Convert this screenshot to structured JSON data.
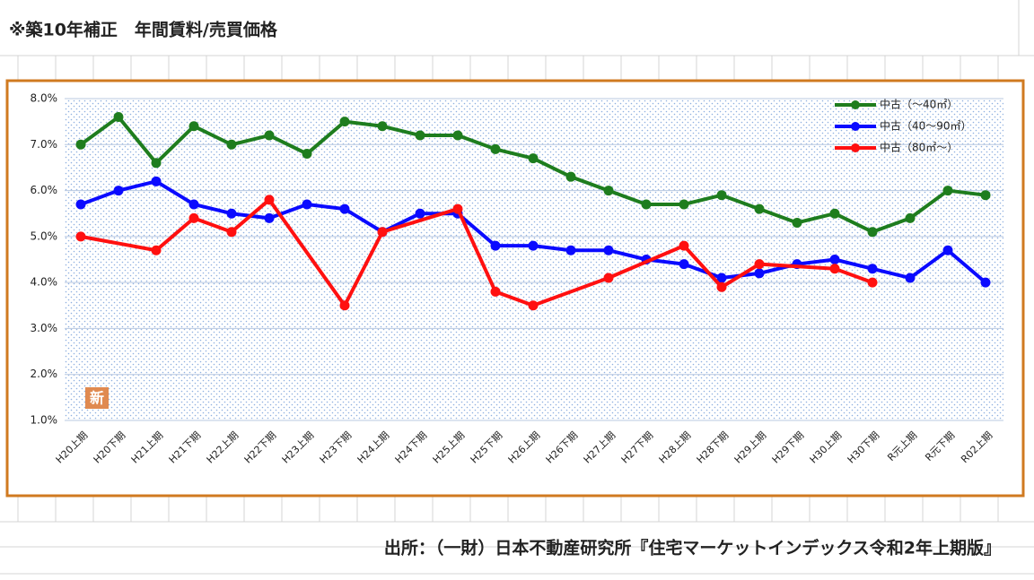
{
  "heading": "※築10年補正　年間賃料/売買価格",
  "source": "出所：（一財）日本不動産研究所『住宅マーケットインデックス令和2年上期版』",
  "chart_data": {
    "type": "line",
    "badge": "新",
    "categories": [
      "H20上期",
      "H20下期",
      "H21上期",
      "H21下期",
      "H22上期",
      "H22下期",
      "H23上期",
      "H23下期",
      "H24上期",
      "H24下期",
      "H25上期",
      "H25下期",
      "H26上期",
      "H26下期",
      "H27上期",
      "H27下期",
      "H28上期",
      "H28下期",
      "H29上期",
      "H29下期",
      "H30上期",
      "H30下期",
      "R元上期",
      "R元下期",
      "R02上期"
    ],
    "series": [
      {
        "name": "中古（～40㎡）",
        "color": "#1e7d1e",
        "values": [
          7.0,
          7.6,
          6.6,
          7.4,
          7.0,
          7.2,
          6.8,
          7.5,
          7.4,
          7.2,
          7.2,
          6.9,
          6.7,
          6.3,
          6.0,
          5.7,
          5.7,
          5.9,
          5.6,
          5.3,
          5.5,
          5.1,
          5.4,
          6.0,
          5.9
        ]
      },
      {
        "name": "中古（40～90㎡）",
        "color": "#0a0aff",
        "values": [
          5.7,
          6.0,
          6.2,
          5.7,
          5.5,
          5.4,
          5.7,
          5.6,
          5.1,
          5.5,
          5.5,
          4.8,
          4.8,
          4.7,
          4.7,
          4.5,
          4.4,
          4.1,
          4.2,
          4.4,
          4.5,
          4.3,
          4.1,
          4.7,
          4.0
        ]
      },
      {
        "name": "中古（80㎡～）",
        "color": "#ff1010",
        "values": [
          5.0,
          null,
          4.7,
          5.4,
          5.1,
          5.8,
          null,
          3.5,
          5.1,
          null,
          5.6,
          3.8,
          3.5,
          null,
          4.1,
          null,
          4.8,
          3.9,
          4.4,
          null,
          4.3,
          4.0,
          null,
          null,
          null
        ]
      }
    ],
    "span_gaps": true,
    "ylim": [
      1,
      8
    ],
    "yticks": [
      {
        "value": 1,
        "label": "1.0%"
      },
      {
        "value": 2,
        "label": "2.0%"
      },
      {
        "value": 3,
        "label": "3.0%"
      },
      {
        "value": 4,
        "label": "4.0%"
      },
      {
        "value": 5,
        "label": "5.0%"
      },
      {
        "value": 6,
        "label": "6.0%"
      },
      {
        "value": 7,
        "label": "7.0%"
      },
      {
        "value": 8,
        "label": "8.0%"
      }
    ],
    "grid": true,
    "legend": "top-right"
  }
}
